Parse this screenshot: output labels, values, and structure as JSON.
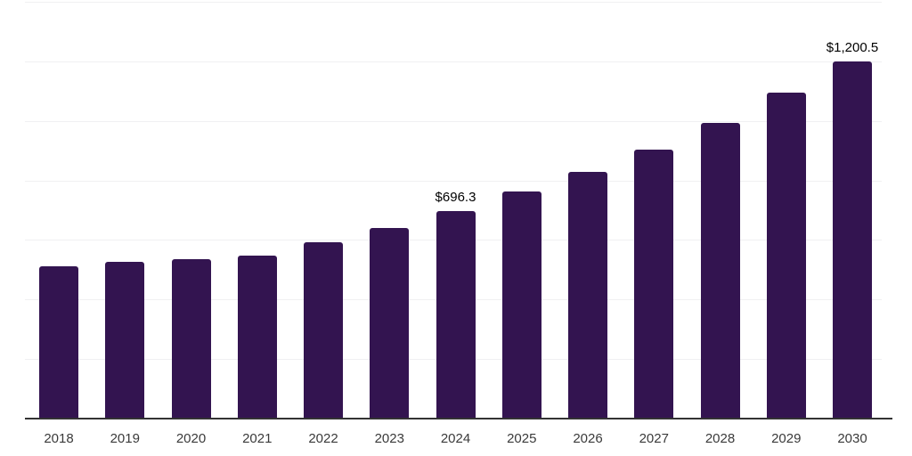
{
  "chart_data": {
    "type": "bar",
    "categories": [
      "2018",
      "2019",
      "2020",
      "2021",
      "2022",
      "2023",
      "2024",
      "2025",
      "2026",
      "2027",
      "2028",
      "2029",
      "2030"
    ],
    "values": [
      512.5,
      527.4,
      536.2,
      546.7,
      592.6,
      640.1,
      696.3,
      761.7,
      829.9,
      904.1,
      993.0,
      1093.9,
      1200.5
    ],
    "data_labels": [
      {
        "category": "2024",
        "text": "$696.3"
      },
      {
        "category": "2030",
        "text": "$1,200.5"
      }
    ],
    "xlabel": "",
    "ylabel": "",
    "ylim": [
      0,
      1400
    ],
    "grid_step": 200,
    "grid": "horizontal",
    "legend": "none",
    "bar_color": "#331450",
    "axis_color": "#333333",
    "gridline_color": "#f0f0f2",
    "tick_label_color": "#3a3a3a",
    "data_label_color": "#000000"
  }
}
